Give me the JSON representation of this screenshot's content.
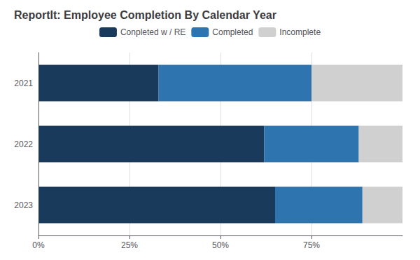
{
  "chart_data": {
    "type": "bar",
    "orientation": "horizontal",
    "stacked": true,
    "title": "ReportIt: Employee Completion By Calendar Year",
    "categories": [
      "2021",
      "2022",
      "2023"
    ],
    "series": [
      {
        "name": "Conpleted w / RE",
        "color": "#1a3a5c",
        "values": [
          33,
          62,
          65
        ]
      },
      {
        "name": "Completed",
        "color": "#2e75b0",
        "values": [
          42,
          26,
          24
        ]
      },
      {
        "name": "Incomplete",
        "color": "#d0d0d0",
        "values": [
          25,
          12,
          11
        ]
      }
    ],
    "xlim": [
      0,
      100
    ],
    "xticks": [
      {
        "value": 0,
        "label": "0%"
      },
      {
        "value": 25,
        "label": "25%"
      },
      {
        "value": 50,
        "label": "50%"
      },
      {
        "value": 75,
        "label": "75%"
      }
    ],
    "grid": true,
    "legend": "top"
  }
}
